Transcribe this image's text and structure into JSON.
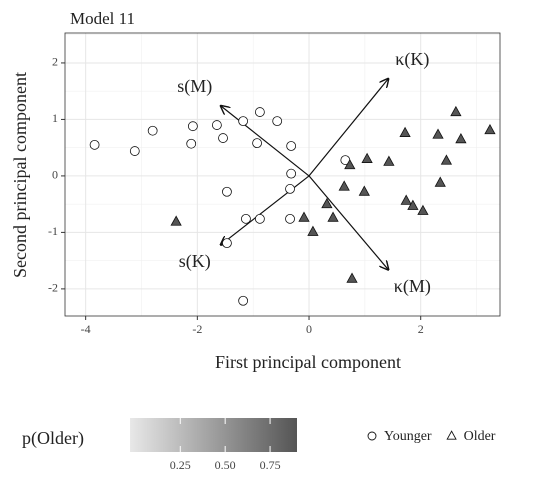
{
  "chart_data": {
    "type": "scatter",
    "title": "Model 11",
    "x_label": "First principal component",
    "y_label": "Second principal component",
    "xlim": [
      -4.37,
      3.42
    ],
    "ylim": [
      -2.48,
      2.53
    ],
    "xticks": [
      -4,
      -2,
      0,
      2
    ],
    "yticks": [
      -2,
      -1,
      0,
      1,
      2
    ],
    "grid": true,
    "series": [
      {
        "name": "Younger",
        "shape": "circle",
        "color": "#ffffff",
        "x": [
          -3.84,
          -3.12,
          -2.8,
          -2.08,
          -2.11,
          -1.65,
          -1.54,
          -1.18,
          -0.88,
          -0.57,
          -0.93,
          -0.32,
          -0.32,
          -0.34,
          -1.47,
          -1.13,
          -0.88,
          -0.34,
          -1.47,
          -1.18,
          0.65
        ],
        "y": [
          0.55,
          0.44,
          0.8,
          0.88,
          0.57,
          0.9,
          0.67,
          0.97,
          1.13,
          0.97,
          0.58,
          0.53,
          0.04,
          -0.23,
          -0.28,
          -0.76,
          -0.76,
          -0.76,
          -1.19,
          -2.21,
          0.28
        ]
      },
      {
        "name": "Older",
        "shape": "triangle",
        "color": "#555555",
        "x": [
          -2.38,
          0.43,
          0.32,
          -0.09,
          0.07,
          0.73,
          1.04,
          0.63,
          0.99,
          1.43,
          1.72,
          1.74,
          1.86,
          2.04,
          2.31,
          2.46,
          2.35,
          2.63,
          2.72,
          3.24,
          0.77
        ],
        "y": [
          -0.81,
          -0.74,
          -0.5,
          -0.74,
          -0.99,
          0.19,
          0.3,
          -0.19,
          -0.28,
          0.25,
          0.76,
          -0.44,
          -0.53,
          -0.62,
          0.73,
          0.27,
          -0.12,
          1.13,
          0.65,
          0.81,
          -1.82
        ]
      }
    ],
    "arrows": [
      {
        "label": "κ(K)",
        "x": 1.42,
        "y": 1.72
      },
      {
        "label": "s(M)",
        "x": -1.58,
        "y": 1.24
      },
      {
        "label": "s(K)",
        "x": -1.58,
        "y": -1.22
      },
      {
        "label": "κ(M)",
        "x": 1.42,
        "y": -1.66
      }
    ],
    "colorbar": {
      "title": "p(Older)",
      "lim": [
        -0.03,
        0.9
      ],
      "colors": [
        "#e8e8e8",
        "#555555"
      ],
      "ticks": [
        0.25,
        {
          "value": 0.5,
          "label": "0.50"
        },
        0.75
      ]
    }
  }
}
